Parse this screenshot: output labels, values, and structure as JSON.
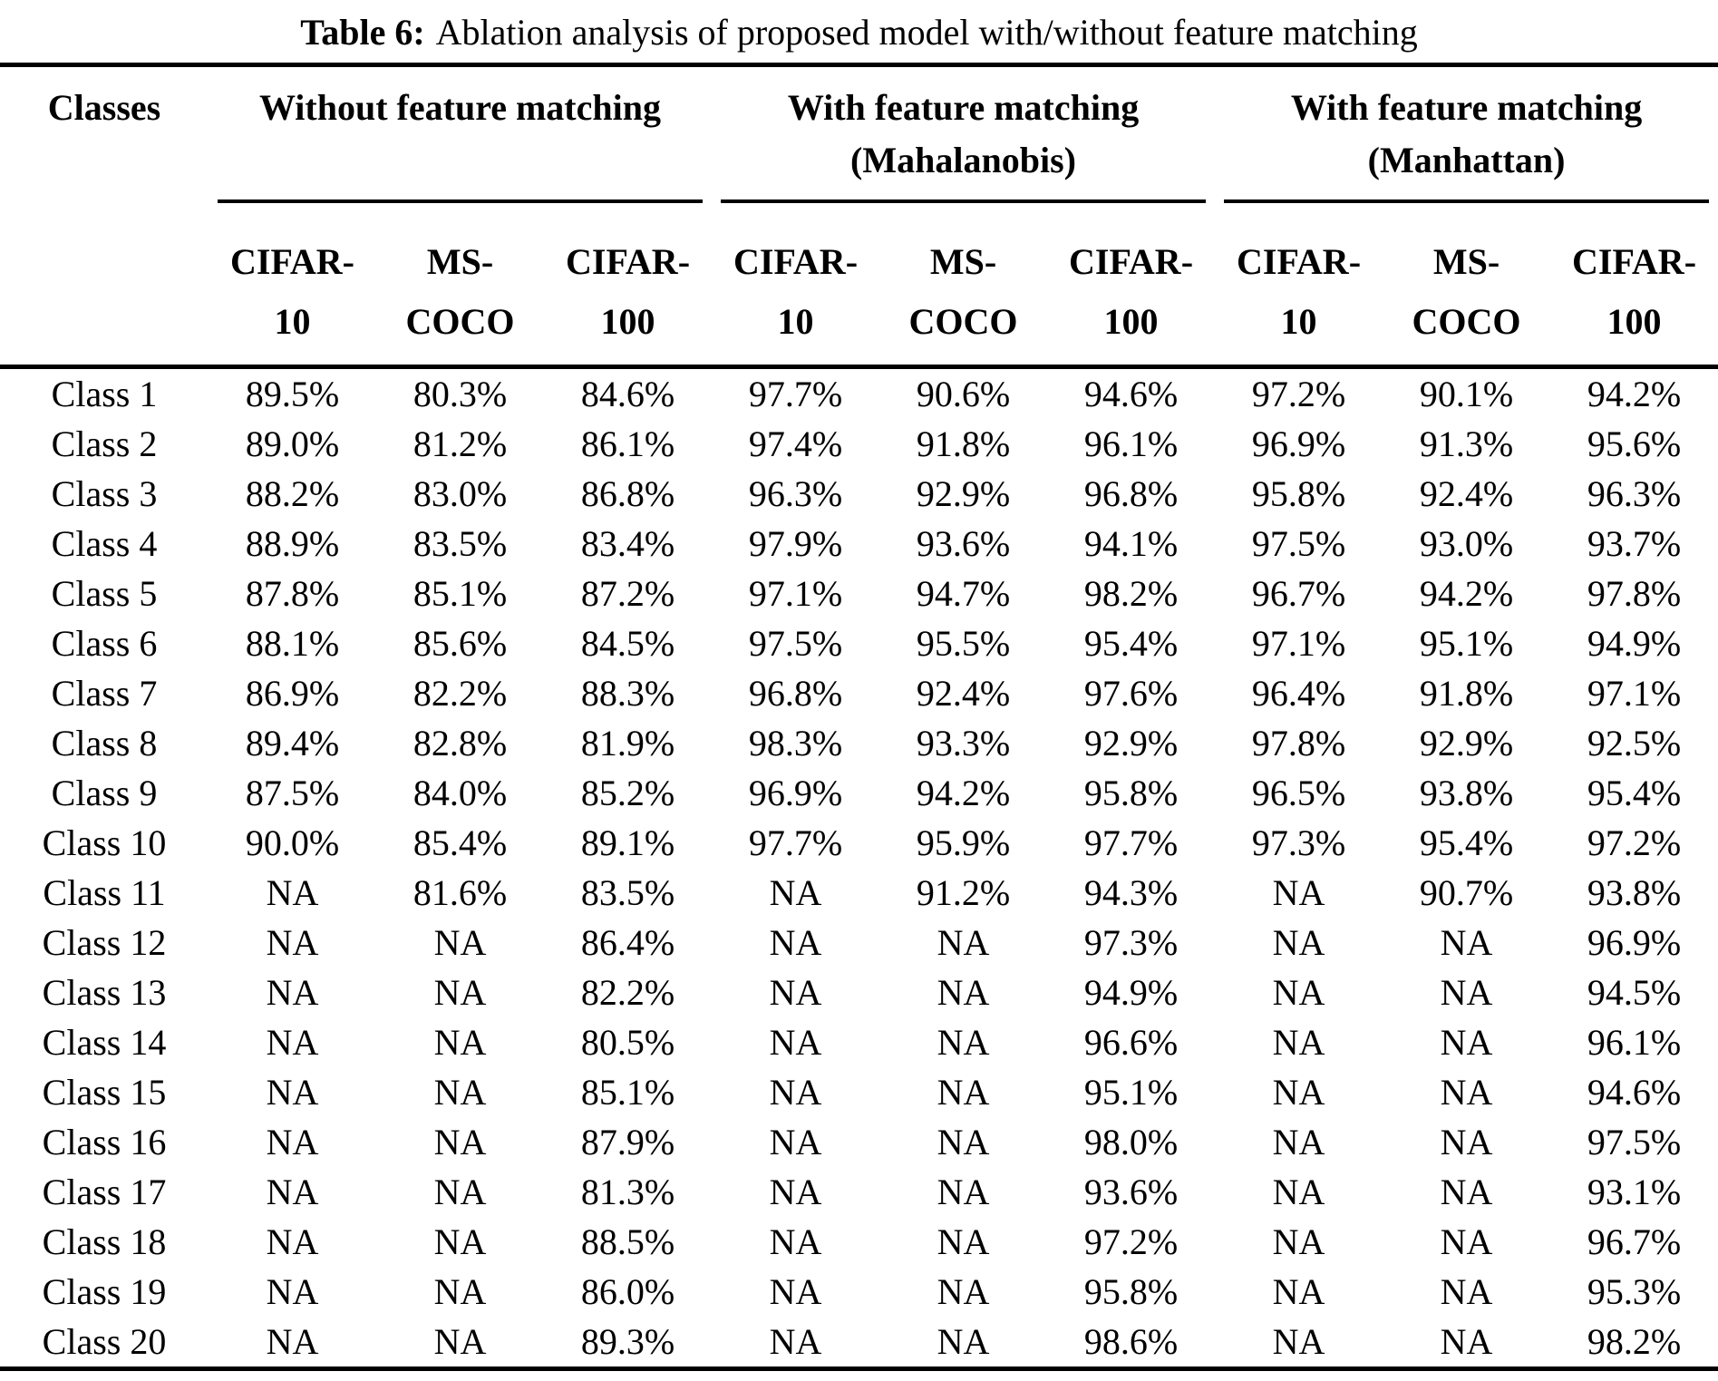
{
  "caption": {
    "label": "Table 6:",
    "text": "Ablation analysis of proposed model with/without feature matching"
  },
  "colors": {
    "text": "#000000",
    "background": "#ffffff",
    "rule": "#000000"
  },
  "table": {
    "classes_header": "Classes",
    "groups": [
      {
        "line1": "Without feature matching",
        "line2": ""
      },
      {
        "line1": "With feature matching",
        "line2": "(Mahalanobis)"
      },
      {
        "line1": "With feature matching",
        "line2": "(Manhattan)"
      }
    ],
    "sub_columns": [
      {
        "line1": "CIFAR-",
        "line2": "10"
      },
      {
        "line1": "MS-",
        "line2": "COCO"
      },
      {
        "line1": "CIFAR-",
        "line2": "100"
      },
      {
        "line1": "CIFAR-",
        "line2": "10"
      },
      {
        "line1": "MS-",
        "line2": "COCO"
      },
      {
        "line1": "CIFAR-",
        "line2": "100"
      },
      {
        "line1": "CIFAR-",
        "line2": "10"
      },
      {
        "line1": "MS-",
        "line2": "COCO"
      },
      {
        "line1": "CIFAR-",
        "line2": "100"
      }
    ],
    "rows": [
      {
        "label": "Class 1",
        "values": [
          "89.5%",
          "80.3%",
          "84.6%",
          "97.7%",
          "90.6%",
          "94.6%",
          "97.2%",
          "90.1%",
          "94.2%"
        ]
      },
      {
        "label": "Class 2",
        "values": [
          "89.0%",
          "81.2%",
          "86.1%",
          "97.4%",
          "91.8%",
          "96.1%",
          "96.9%",
          "91.3%",
          "95.6%"
        ]
      },
      {
        "label": "Class 3",
        "values": [
          "88.2%",
          "83.0%",
          "86.8%",
          "96.3%",
          "92.9%",
          "96.8%",
          "95.8%",
          "92.4%",
          "96.3%"
        ]
      },
      {
        "label": "Class 4",
        "values": [
          "88.9%",
          "83.5%",
          "83.4%",
          "97.9%",
          "93.6%",
          "94.1%",
          "97.5%",
          "93.0%",
          "93.7%"
        ]
      },
      {
        "label": "Class 5",
        "values": [
          "87.8%",
          "85.1%",
          "87.2%",
          "97.1%",
          "94.7%",
          "98.2%",
          "96.7%",
          "94.2%",
          "97.8%"
        ]
      },
      {
        "label": "Class 6",
        "values": [
          "88.1%",
          "85.6%",
          "84.5%",
          "97.5%",
          "95.5%",
          "95.4%",
          "97.1%",
          "95.1%",
          "94.9%"
        ]
      },
      {
        "label": "Class 7",
        "values": [
          "86.9%",
          "82.2%",
          "88.3%",
          "96.8%",
          "92.4%",
          "97.6%",
          "96.4%",
          "91.8%",
          "97.1%"
        ]
      },
      {
        "label": "Class 8",
        "values": [
          "89.4%",
          "82.8%",
          "81.9%",
          "98.3%",
          "93.3%",
          "92.9%",
          "97.8%",
          "92.9%",
          "92.5%"
        ]
      },
      {
        "label": "Class 9",
        "values": [
          "87.5%",
          "84.0%",
          "85.2%",
          "96.9%",
          "94.2%",
          "95.8%",
          "96.5%",
          "93.8%",
          "95.4%"
        ]
      },
      {
        "label": "Class 10",
        "values": [
          "90.0%",
          "85.4%",
          "89.1%",
          "97.7%",
          "95.9%",
          "97.7%",
          "97.3%",
          "95.4%",
          "97.2%"
        ]
      },
      {
        "label": "Class 11",
        "values": [
          "NA",
          "81.6%",
          "83.5%",
          "NA",
          "91.2%",
          "94.3%",
          "NA",
          "90.7%",
          "93.8%"
        ]
      },
      {
        "label": "Class 12",
        "values": [
          "NA",
          "NA",
          "86.4%",
          "NA",
          "NA",
          "97.3%",
          "NA",
          "NA",
          "96.9%"
        ]
      },
      {
        "label": "Class 13",
        "values": [
          "NA",
          "NA",
          "82.2%",
          "NA",
          "NA",
          "94.9%",
          "NA",
          "NA",
          "94.5%"
        ]
      },
      {
        "label": "Class 14",
        "values": [
          "NA",
          "NA",
          "80.5%",
          "NA",
          "NA",
          "96.6%",
          "NA",
          "NA",
          "96.1%"
        ]
      },
      {
        "label": "Class 15",
        "values": [
          "NA",
          "NA",
          "85.1%",
          "NA",
          "NA",
          "95.1%",
          "NA",
          "NA",
          "94.6%"
        ]
      },
      {
        "label": "Class 16",
        "values": [
          "NA",
          "NA",
          "87.9%",
          "NA",
          "NA",
          "98.0%",
          "NA",
          "NA",
          "97.5%"
        ]
      },
      {
        "label": "Class 17",
        "values": [
          "NA",
          "NA",
          "81.3%",
          "NA",
          "NA",
          "93.6%",
          "NA",
          "NA",
          "93.1%"
        ]
      },
      {
        "label": "Class 18",
        "values": [
          "NA",
          "NA",
          "88.5%",
          "NA",
          "NA",
          "97.2%",
          "NA",
          "NA",
          "96.7%"
        ]
      },
      {
        "label": "Class 19",
        "values": [
          "NA",
          "NA",
          "86.0%",
          "NA",
          "NA",
          "95.8%",
          "NA",
          "NA",
          "95.3%"
        ]
      },
      {
        "label": "Class 20",
        "values": [
          "NA",
          "NA",
          "89.3%",
          "NA",
          "NA",
          "98.6%",
          "NA",
          "NA",
          "98.2%"
        ]
      }
    ]
  }
}
